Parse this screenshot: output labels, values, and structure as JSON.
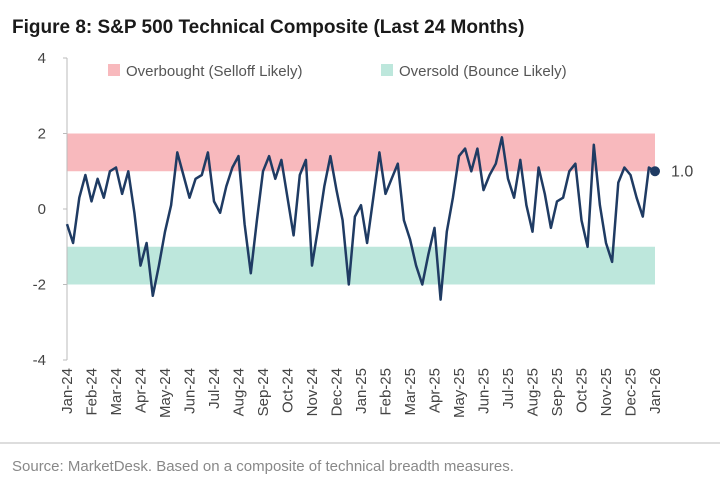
{
  "chart_data": {
    "type": "line",
    "title": "Figure 8: S&P 500 Technical Composite (Last 24 Months)",
    "source": "Source: MarketDesk. Based on a composite of technical breadth measures.",
    "categories": [
      "Jan-24",
      null,
      null,
      null,
      "Feb-24",
      null,
      null,
      null,
      "Mar-24",
      null,
      null,
      null,
      "Apr-24",
      null,
      null,
      null,
      "May-24",
      null,
      null,
      null,
      "Jun-24",
      null,
      null,
      null,
      "Jul-24",
      null,
      null,
      null,
      "Aug-24",
      null,
      null,
      null,
      "Sep-24",
      null,
      null,
      null,
      "Oct-24",
      null,
      null,
      null,
      "Nov-24",
      null,
      null,
      null,
      "Dec-24",
      null,
      null,
      null,
      "Jan-25",
      null,
      null,
      null,
      "Feb-25",
      null,
      null,
      null,
      "Mar-25",
      null,
      null,
      null,
      "Apr-25",
      null,
      null,
      null,
      "May-25",
      null,
      null,
      null,
      "Jun-25",
      null,
      null,
      null,
      "Jul-25",
      null,
      null,
      null,
      "Aug-25",
      null,
      null,
      null,
      "Sep-25",
      null,
      null,
      null,
      "Oct-25",
      null,
      null,
      null,
      "Nov-25",
      null,
      null,
      null,
      "Dec-25",
      null,
      null,
      null,
      "Jan-26"
    ],
    "series": [
      {
        "name": "S&P 500 Technical Composite",
        "color": "#1f3b63",
        "values": [
          -0.4,
          -0.9,
          0.3,
          0.9,
          0.2,
          0.8,
          0.3,
          1.0,
          1.1,
          0.4,
          1.0,
          -0.1,
          -1.5,
          -0.9,
          -2.3,
          -1.5,
          -0.6,
          0.1,
          1.5,
          0.9,
          0.3,
          0.8,
          0.9,
          1.5,
          0.2,
          -0.1,
          0.6,
          1.1,
          1.4,
          -0.4,
          -1.7,
          -0.3,
          1.0,
          1.4,
          0.8,
          1.3,
          0.3,
          -0.7,
          0.9,
          1.3,
          -1.5,
          -0.5,
          0.6,
          1.4,
          0.5,
          -0.3,
          -2.0,
          -0.2,
          0.1,
          -0.9,
          0.3,
          1.5,
          0.4,
          0.8,
          1.2,
          -0.3,
          -0.8,
          -1.5,
          -2.0,
          -1.2,
          -0.5,
          -2.4,
          -0.6,
          0.3,
          1.4,
          1.6,
          1.0,
          1.6,
          0.5,
          0.9,
          1.2,
          1.9,
          0.8,
          0.3,
          1.3,
          0.1,
          -0.6,
          1.1,
          0.4,
          -0.5,
          0.2,
          0.3,
          1.0,
          1.2,
          -0.3,
          -1.0,
          1.7,
          0.1,
          -0.9,
          -1.4,
          0.7,
          1.1,
          0.9,
          0.3,
          -0.2,
          1.1,
          1.0
        ],
        "value_labels": [
          null,
          null,
          null,
          null,
          null,
          null,
          null,
          null,
          null,
          null,
          null,
          null,
          null,
          null,
          null,
          null,
          null,
          null,
          null,
          null,
          null,
          null,
          null,
          null,
          null,
          null,
          null,
          null,
          null,
          null,
          null,
          null,
          null,
          null,
          null,
          null,
          null,
          null,
          null,
          null,
          null,
          null,
          null,
          null,
          null,
          null,
          null,
          null,
          null,
          null,
          null,
          null,
          null,
          null,
          null,
          null,
          null,
          null,
          null,
          null,
          null,
          null,
          null,
          null,
          null,
          null,
          null,
          null,
          null,
          null,
          null,
          null,
          null,
          null,
          null,
          null,
          null,
          null,
          null,
          null,
          null,
          null,
          null,
          null,
          null,
          null,
          null,
          null,
          null,
          null,
          null,
          null,
          null,
          null,
          null,
          null,
          "1.0"
        ]
      }
    ],
    "bands": [
      {
        "name": "Overbought (Selloff Likely)",
        "color": "#f8b9bd",
        "range": [
          1,
          2
        ]
      },
      {
        "name": "Oversold (Bounce Likely)",
        "color": "#bde7dc",
        "range": [
          -2,
          -1
        ]
      }
    ],
    "ylim": [
      -4,
      4
    ],
    "yticks": [
      -4,
      -2,
      0,
      2,
      4
    ]
  }
}
